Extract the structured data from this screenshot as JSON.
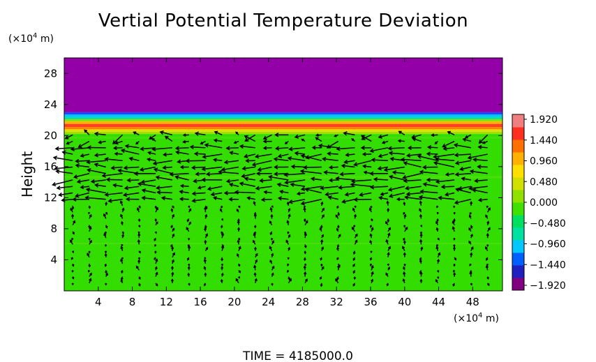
{
  "chart_data": {
    "type": "heatmap",
    "title": "Vertial Potential Temperature Deviation",
    "xlabel": "",
    "xunit_prefix": "(×10",
    "xunit_exp": "4",
    "xunit_suffix": " m)",
    "ylabel": "Height",
    "yunit_prefix": "(×10",
    "yunit_exp": "4",
    "yunit_suffix": " m)",
    "xlim": [
      0,
      51.5
    ],
    "ylim": [
      0,
      30
    ],
    "xticks": [
      4,
      8,
      12,
      16,
      20,
      24,
      28,
      32,
      36,
      40,
      44,
      48
    ],
    "yticks": [
      4,
      8,
      12,
      16,
      20,
      24,
      28
    ],
    "colorbar": {
      "ticks": [
        "1.920",
        "1.440",
        "0.960",
        "0.480",
        "0.000",
        "−0.480",
        "−0.960",
        "−1.440",
        "−1.920"
      ],
      "colors": [
        "#800080",
        "#2020c0",
        "#0060ff",
        "#00c8ff",
        "#00e0a0",
        "#00e060",
        "#40e000",
        "#90e000",
        "#d0e000",
        "#ffe000",
        "#ffb000",
        "#ff7000",
        "#ff3020",
        "#f08080"
      ]
    },
    "field_bands": [
      {
        "y0": 23.0,
        "y1": 30.0,
        "color": "#9400a8"
      },
      {
        "y0": 22.7,
        "y1": 23.0,
        "color": "#1a4cff"
      },
      {
        "y0": 22.4,
        "y1": 22.7,
        "color": "#00c0ff"
      },
      {
        "y0": 22.1,
        "y1": 22.4,
        "color": "#00e0b0"
      },
      {
        "y0": 21.8,
        "y1": 22.1,
        "color": "#90e000"
      },
      {
        "y0": 21.5,
        "y1": 21.8,
        "color": "#ffb000"
      },
      {
        "y0": 21.1,
        "y1": 21.5,
        "color": "#ff4020"
      },
      {
        "y0": 20.8,
        "y1": 21.1,
        "color": "#ff8000"
      },
      {
        "y0": 20.5,
        "y1": 20.8,
        "color": "#e0e000"
      },
      {
        "y0": 20.2,
        "y1": 20.5,
        "color": "#a0e000"
      },
      {
        "y0": 0.0,
        "y1": 20.2,
        "color": "#33dd00"
      }
    ],
    "time_label": "TIME  =  4185000.0"
  }
}
